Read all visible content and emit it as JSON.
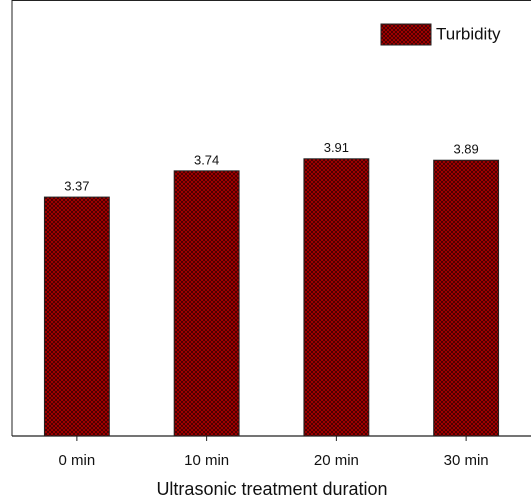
{
  "chart_data": {
    "type": "bar",
    "x_label": "Ultrasonic treatment duration",
    "categories": [
      "0 min",
      "10 min",
      "20 min",
      "30 min"
    ],
    "series": [
      {
        "name": "Turbidity",
        "color": "#b30000",
        "values": [
          3.37,
          3.74,
          3.91,
          3.89
        ]
      }
    ],
    "ylim": [
      0,
      6.15
    ],
    "legend": "upper right"
  }
}
